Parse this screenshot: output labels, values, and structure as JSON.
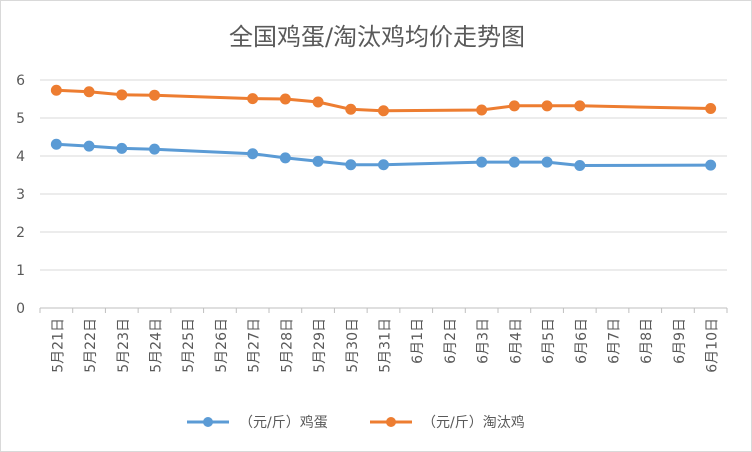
{
  "chart_data": {
    "type": "line",
    "title": "全国鸡蛋/淘汰鸡均价走势图",
    "x": [
      "5月21日",
      "5月22日",
      "5月23日",
      "5月24日",
      "5月25日",
      "5月26日",
      "5月27日",
      "5月28日",
      "5月29日",
      "5月30日",
      "5月31日",
      "6月1日",
      "6月2日",
      "6月3日",
      "6月4日",
      "6月5日",
      "6月6日",
      "6月7日",
      "6月8日",
      "6月9日",
      "6月10日"
    ],
    "series": [
      {
        "name": "（元/斤）鸡蛋",
        "color": "#5b9bd5",
        "values": [
          4.31,
          4.26,
          4.2,
          4.18,
          null,
          null,
          4.06,
          3.95,
          3.86,
          3.77,
          3.77,
          null,
          null,
          3.84,
          3.84,
          3.84,
          3.75,
          null,
          null,
          null,
          3.76
        ]
      },
      {
        "name": "（元/斤）淘汰鸡",
        "color": "#ed7d31",
        "values": [
          5.73,
          5.69,
          5.61,
          5.6,
          null,
          null,
          5.51,
          5.5,
          5.42,
          5.23,
          5.19,
          null,
          null,
          5.21,
          5.32,
          5.32,
          5.32,
          null,
          null,
          null,
          5.25
        ]
      }
    ],
    "ylim": [
      0,
      6
    ],
    "yticks": [
      0,
      1,
      2,
      3,
      4,
      5,
      6
    ],
    "grid": true,
    "legend": "bottom"
  }
}
